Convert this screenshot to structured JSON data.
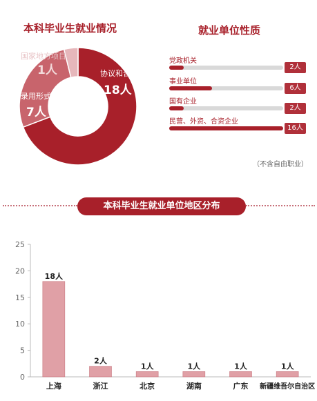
{
  "donut": {
    "title": "本科毕业生就业情况",
    "slices": [
      {
        "name": "协议和合同就业",
        "value": 18,
        "value_label": "18人",
        "color": "#a8202a"
      },
      {
        "name": "其他录用形式就业",
        "value": 7,
        "value_label": "7人",
        "color": "#c8646c"
      },
      {
        "name": "国家地方项目",
        "value": 1,
        "value_label": "1人",
        "color": "#e6b7bb"
      }
    ]
  },
  "units": {
    "title": "就业单位性质",
    "max": 16,
    "items": [
      {
        "name": "党政机关",
        "value": 2,
        "label": "2人"
      },
      {
        "name": "事业单位",
        "value": 6,
        "label": "6人"
      },
      {
        "name": "国有企业",
        "value": 2,
        "label": "2人"
      },
      {
        "name": "民营、外资、合资企业",
        "value": 16,
        "label": "16人"
      }
    ],
    "note": "（不含自由职业）"
  },
  "chart_data": {
    "type": "bar",
    "title": "本科毕业生就业单位地区分布",
    "categories": [
      "上海",
      "浙江",
      "北京",
      "湖南",
      "广东",
      "新疆维吾尔自治区"
    ],
    "values": [
      18,
      2,
      1,
      1,
      1,
      1
    ],
    "data_labels": [
      "18人",
      "2人",
      "1人",
      "1人",
      "1人",
      "1人"
    ],
    "yticks": [
      "0",
      "5",
      "10",
      "15",
      "20",
      "25"
    ],
    "ylim": [
      0,
      25
    ],
    "grid": false,
    "bar_color": "#e0a0a6"
  },
  "colors": {
    "accent": "#a8202a",
    "track": "#d9d9d9"
  }
}
